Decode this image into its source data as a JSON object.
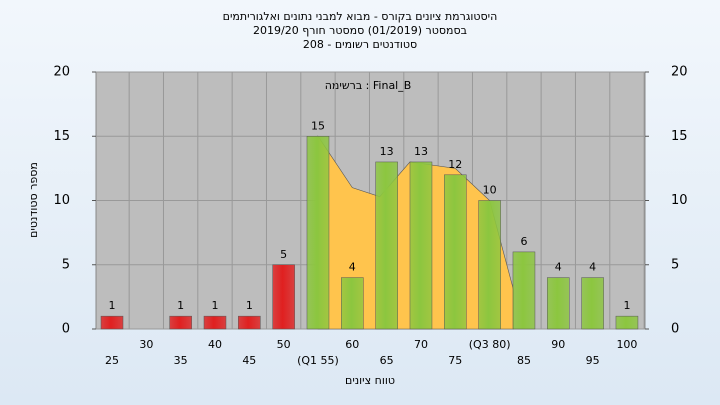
{
  "chart_data": {
    "type": "bar",
    "title": "היסטוגרמת ציונים בקורס - מבוא למבני נתונים ואלגוריתמים",
    "subtitle": "בסמסטר  (01/2019)  סמסטר חורף 2019/20",
    "subtitle2": "סטודנטים רשומים - 208",
    "annotation": "ברשימה : Final_B",
    "y_label": "מספר סטודנטים",
    "x_label": "טווח ציונים",
    "categories": [
      "25",
      "30",
      "35",
      "40",
      "45",
      "50",
      "(Q1 55)",
      "60",
      "65",
      "70",
      "75",
      "(Q3 80)",
      "85",
      "90",
      "95",
      "100"
    ],
    "values": [
      1,
      0,
      1,
      1,
      1,
      5,
      15,
      4,
      13,
      13,
      12,
      10,
      6,
      4,
      4,
      1
    ],
    "colors": [
      "#e02020",
      "#e02020",
      "#e02020",
      "#e02020",
      "#e02020",
      "#e02020",
      "#8cc63f",
      "#8cc63f",
      "#8cc63f",
      "#8cc63f",
      "#8cc63f",
      "#8cc63f",
      "#8cc63f",
      "#8cc63f",
      "#8cc63f",
      "#8cc63f"
    ],
    "area": {
      "color": "#ffc44d",
      "x": [
        55,
        60,
        64,
        68.4,
        75,
        80,
        83.5
      ],
      "values": [
        15,
        11,
        10.3,
        13,
        12.5,
        10,
        3
      ]
    },
    "ylim": [
      0,
      20
    ],
    "yticks": [
      0,
      5,
      10,
      15,
      20
    ],
    "y2lim": [
      0,
      20
    ],
    "y2ticks": [
      0,
      5,
      10,
      15,
      20
    ],
    "grid": true
  }
}
